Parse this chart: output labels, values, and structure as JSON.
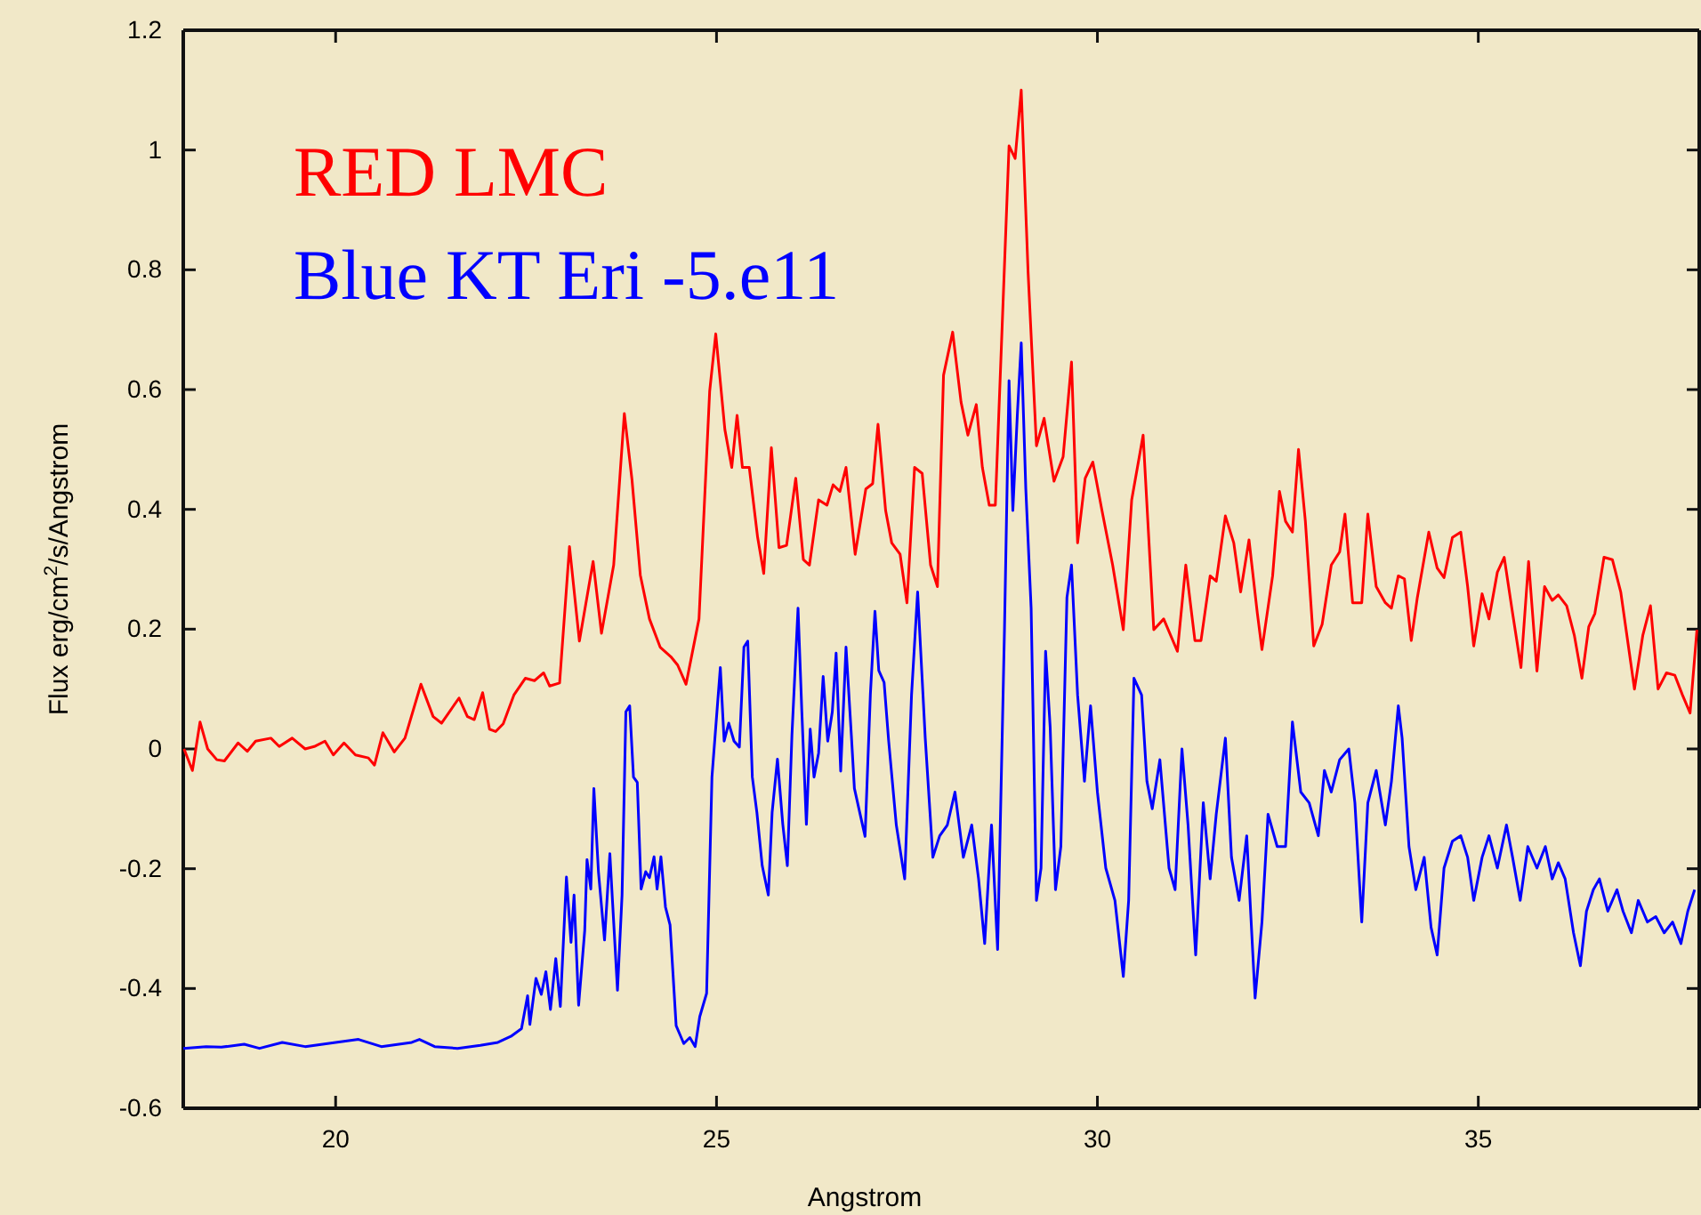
{
  "chart_data": {
    "type": "line",
    "xlabel": "Angstrom",
    "ylabel": "Flux erg/cm$^{2}$/s/Angstrom",
    "xlim": [
      18,
      37.9
    ],
    "ylim": [
      -0.6,
      1.2
    ],
    "xticks": [
      20,
      25,
      30,
      35
    ],
    "yticks": [
      -0.6,
      -0.4,
      -0.2,
      0,
      0.2,
      0.4,
      0.6,
      0.8,
      1,
      1.2
    ],
    "grid": false,
    "legend": "top left",
    "marker": "none",
    "line_style": "solid",
    "series": [
      {
        "name": "RED LMC",
        "color": "#ff0000",
        "x": [
          18.01,
          18.12,
          18.22,
          18.32,
          18.44,
          18.54,
          18.72,
          18.84,
          18.95,
          19.15,
          19.26,
          19.43,
          19.6,
          19.72,
          19.86,
          19.97,
          20.11,
          20.26,
          20.43,
          20.51,
          20.62,
          20.77,
          20.91,
          21.12,
          21.28,
          21.39,
          21.62,
          21.73,
          21.82,
          21.93,
          22.02,
          22.1,
          22.2,
          22.34,
          22.49,
          22.61,
          22.73,
          22.81,
          22.94,
          23.07,
          23.2,
          23.38,
          23.49,
          23.65,
          23.79,
          23.89,
          24.0,
          24.12,
          24.26,
          24.4,
          24.49,
          24.6,
          24.77,
          24.91,
          24.99,
          25.11,
          25.2,
          25.27,
          25.34,
          25.43,
          25.54,
          25.62,
          25.72,
          25.82,
          25.92,
          26.04,
          26.14,
          26.22,
          26.34,
          26.45,
          26.53,
          26.62,
          26.7,
          26.82,
          26.96,
          27.05,
          27.12,
          27.22,
          27.3,
          27.41,
          27.5,
          27.6,
          27.7,
          27.81,
          27.9,
          27.98,
          28.1,
          28.21,
          28.3,
          28.41,
          28.49,
          28.58,
          28.66,
          28.84,
          28.92,
          29.0,
          29.09,
          29.2,
          29.3,
          29.43,
          29.55,
          29.66,
          29.74,
          29.84,
          29.94,
          30.06,
          30.2,
          30.34,
          30.45,
          30.6,
          30.74,
          30.87,
          31.05,
          31.16,
          31.28,
          31.36,
          31.48,
          31.56,
          31.68,
          31.79,
          31.88,
          31.99,
          32.1,
          32.16,
          32.3,
          32.39,
          32.47,
          32.56,
          32.64,
          32.73,
          32.84,
          32.95,
          33.07,
          33.18,
          33.25,
          33.35,
          33.47,
          33.55,
          33.66,
          33.78,
          33.86,
          33.95,
          34.03,
          34.12,
          34.2,
          34.35,
          34.46,
          34.55,
          34.66,
          34.77,
          34.86,
          34.94,
          35.05,
          35.14,
          35.25,
          35.34,
          35.44,
          35.56,
          35.66,
          35.77,
          35.87,
          35.97,
          36.05,
          36.16,
          36.26,
          36.36,
          36.45,
          36.53,
          36.65,
          36.76,
          36.87,
          36.94,
          37.05,
          37.16,
          37.26,
          37.36,
          37.47,
          37.58,
          37.68,
          37.78,
          37.87
        ],
        "values": [
          0.0,
          -0.036,
          0.045,
          0,
          -0.018,
          -0.02,
          0.01,
          -0.004,
          0.013,
          0.018,
          0.004,
          0.018,
          0,
          0.004,
          0.013,
          -0.01,
          0.01,
          -0.01,
          -0.015,
          -0.027,
          0.027,
          -0.005,
          0.018,
          0.108,
          0.054,
          0.043,
          0.085,
          0.054,
          0.049,
          0.094,
          0.033,
          0.029,
          0.042,
          0.09,
          0.118,
          0.114,
          0.127,
          0.105,
          0.11,
          0.338,
          0.18,
          0.313,
          0.193,
          0.307,
          0.56,
          0.45,
          0.29,
          0.217,
          0.17,
          0.154,
          0.14,
          0.108,
          0.217,
          0.597,
          0.693,
          0.533,
          0.47,
          0.557,
          0.47,
          0.47,
          0.353,
          0.293,
          0.503,
          0.336,
          0.34,
          0.452,
          0.316,
          0.307,
          0.416,
          0.407,
          0.441,
          0.43,
          0.47,
          0.325,
          0.434,
          0.443,
          0.542,
          0.398,
          0.344,
          0.325,
          0.244,
          0.47,
          0.46,
          0.307,
          0.271,
          0.624,
          0.696,
          0.579,
          0.524,
          0.575,
          0.47,
          0.407,
          0.407,
          1.007,
          0.986,
          1.1,
          0.796,
          0.506,
          0.552,
          0.447,
          0.488,
          0.646,
          0.344,
          0.452,
          0.479,
          0.398,
          0.307,
          0.199,
          0.416,
          0.524,
          0.199,
          0.217,
          0.163,
          0.307,
          0.181,
          0.181,
          0.289,
          0.28,
          0.389,
          0.344,
          0.262,
          0.349,
          0.226,
          0.166,
          0.289,
          0.43,
          0.38,
          0.362,
          0.5,
          0.38,
          0.172,
          0.208,
          0.307,
          0.329,
          0.392,
          0.244,
          0.244,
          0.392,
          0.271,
          0.244,
          0.235,
          0.289,
          0.284,
          0.181,
          0.253,
          0.362,
          0.302,
          0.286,
          0.353,
          0.362,
          0.271,
          0.172,
          0.259,
          0.217,
          0.295,
          0.32,
          0.235,
          0.136,
          0.313,
          0.13,
          0.271,
          0.248,
          0.257,
          0.239,
          0.19,
          0.118,
          0.204,
          0.226,
          0.32,
          0.316,
          0.262,
          0.199,
          0.1,
          0.19,
          0.239,
          0.1,
          0.127,
          0.123,
          0.09,
          0.06,
          0.199
        ]
      },
      {
        "name": "Blue KT Eri -5.e11",
        "color": "#0000ff",
        "x": [
          18.0,
          18.3,
          18.5,
          18.8,
          19.0,
          19.3,
          19.6,
          20.0,
          20.3,
          20.6,
          21.0,
          21.1,
          21.3,
          21.6,
          21.9,
          22.13,
          22.3,
          22.44,
          22.52,
          22.55,
          22.63,
          22.7,
          22.76,
          22.82,
          22.89,
          22.95,
          23.03,
          23.09,
          23.13,
          23.19,
          23.27,
          23.3,
          23.35,
          23.39,
          23.45,
          23.53,
          23.6,
          23.7,
          23.76,
          23.81,
          23.86,
          23.91,
          23.96,
          24.01,
          24.07,
          24.12,
          24.18,
          24.22,
          24.27,
          24.33,
          24.39,
          24.47,
          24.57,
          24.65,
          24.72,
          24.78,
          24.87,
          24.94,
          25.05,
          25.1,
          25.16,
          25.23,
          25.3,
          25.36,
          25.41,
          25.47,
          25.53,
          25.6,
          25.68,
          25.73,
          25.8,
          25.87,
          25.93,
          25.99,
          26.07,
          26.12,
          26.18,
          26.23,
          26.28,
          26.34,
          26.4,
          26.46,
          26.52,
          26.57,
          26.63,
          26.7,
          26.77,
          26.81,
          26.88,
          26.95,
          27.02,
          27.08,
          27.13,
          27.2,
          27.26,
          27.36,
          27.47,
          27.56,
          27.64,
          27.74,
          27.84,
          27.93,
          28.03,
          28.13,
          28.24,
          28.35,
          28.44,
          28.52,
          28.61,
          28.69,
          28.78,
          28.84,
          28.89,
          28.95,
          29.0,
          29.06,
          29.13,
          29.2,
          29.26,
          29.32,
          29.38,
          29.45,
          29.52,
          29.6,
          29.66,
          29.74,
          29.83,
          29.91,
          30.0,
          30.11,
          30.23,
          30.34,
          30.41,
          30.48,
          30.58,
          30.65,
          30.72,
          30.82,
          30.94,
          31.02,
          31.11,
          31.19,
          31.29,
          31.39,
          31.48,
          31.56,
          31.68,
          31.76,
          31.86,
          31.96,
          32.07,
          32.16,
          32.24,
          32.36,
          32.47,
          32.56,
          32.67,
          32.78,
          32.9,
          32.98,
          33.07,
          33.18,
          33.3,
          33.38,
          33.47,
          33.55,
          33.66,
          33.78,
          33.86,
          33.95,
          34.0,
          34.09,
          34.18,
          34.29,
          34.38,
          34.46,
          34.55,
          34.66,
          34.77,
          34.86,
          34.94,
          35.05,
          35.14,
          35.25,
          35.37,
          35.45,
          35.55,
          35.65,
          35.77,
          35.88,
          35.97,
          36.05,
          36.14,
          36.25,
          36.34,
          36.42,
          36.51,
          36.59,
          36.7,
          36.82,
          36.9,
          37.01,
          37.1,
          37.22,
          37.33,
          37.44,
          37.55,
          37.66,
          37.75,
          37.84
        ],
        "values": [
          -0.5,
          -0.497,
          -0.498,
          -0.493,
          -0.5,
          -0.49,
          -0.497,
          -0.49,
          -0.485,
          -0.497,
          -0.49,
          -0.485,
          -0.497,
          -0.5,
          -0.495,
          -0.49,
          -0.48,
          -0.467,
          -0.412,
          -0.46,
          -0.383,
          -0.41,
          -0.372,
          -0.435,
          -0.35,
          -0.43,
          -0.214,
          -0.323,
          -0.244,
          -0.428,
          -0.303,
          -0.185,
          -0.234,
          -0.066,
          -0.205,
          -0.319,
          -0.175,
          -0.403,
          -0.244,
          0.062,
          0.072,
          -0.047,
          -0.056,
          -0.234,
          -0.205,
          -0.215,
          -0.18,
          -0.234,
          -0.18,
          -0.264,
          -0.294,
          -0.462,
          -0.492,
          -0.482,
          -0.497,
          -0.447,
          -0.408,
          -0.047,
          0.136,
          0.013,
          0.043,
          0.013,
          0.003,
          0.17,
          0.18,
          -0.047,
          -0.106,
          -0.195,
          -0.244,
          -0.106,
          -0.017,
          -0.126,
          -0.195,
          0.023,
          0.235,
          0.062,
          -0.126,
          0.033,
          -0.047,
          -0.007,
          0.121,
          0.013,
          0.062,
          0.16,
          -0.037,
          0.17,
          0.023,
          -0.066,
          -0.106,
          -0.146,
          0.092,
          0.23,
          0.131,
          0.111,
          0.013,
          -0.127,
          -0.217,
          0.09,
          0.262,
          0.018,
          -0.181,
          -0.145,
          -0.127,
          -0.072,
          -0.181,
          -0.127,
          -0.217,
          -0.325,
          -0.127,
          -0.335,
          0.199,
          0.615,
          0.398,
          0.561,
          0.678,
          0.434,
          0.235,
          -0.253,
          -0.199,
          0.163,
          0.036,
          -0.235,
          -0.163,
          0.253,
          0.307,
          0.09,
          -0.054,
          0.072,
          -0.072,
          -0.199,
          -0.253,
          -0.38,
          -0.253,
          0.118,
          0.09,
          -0.054,
          -0.1,
          -0.018,
          -0.199,
          -0.235,
          0,
          -0.127,
          -0.344,
          -0.09,
          -0.217,
          -0.109,
          0.018,
          -0.181,
          -0.253,
          -0.145,
          -0.416,
          -0.289,
          -0.109,
          -0.163,
          -0.163,
          0.045,
          -0.072,
          -0.09,
          -0.145,
          -0.036,
          -0.072,
          -0.018,
          0,
          -0.09,
          -0.289,
          -0.09,
          -0.036,
          -0.127,
          -0.054,
          0.072,
          0.018,
          -0.163,
          -0.235,
          -0.181,
          -0.298,
          -0.344,
          -0.199,
          -0.154,
          -0.145,
          -0.181,
          -0.253,
          -0.181,
          -0.145,
          -0.199,
          -0.127,
          -0.181,
          -0.253,
          -0.163,
          -0.199,
          -0.163,
          -0.217,
          -0.19,
          -0.217,
          -0.307,
          -0.362,
          -0.271,
          -0.235,
          -0.217,
          -0.271,
          -0.235,
          -0.271,
          -0.307,
          -0.253,
          -0.289,
          -0.28,
          -0.307,
          -0.289,
          -0.325,
          -0.271,
          -0.235
        ]
      }
    ]
  }
}
